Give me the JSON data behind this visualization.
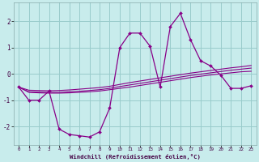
{
  "x": [
    0,
    1,
    2,
    3,
    4,
    5,
    6,
    7,
    8,
    9,
    10,
    11,
    12,
    13,
    14,
    15,
    16,
    17,
    18,
    19,
    20,
    21,
    22,
    23
  ],
  "y_main": [
    -0.5,
    -1.0,
    -1.0,
    -0.65,
    -2.1,
    -2.3,
    -2.35,
    -2.4,
    -2.2,
    -1.3,
    1.0,
    1.55,
    1.55,
    1.05,
    -0.5,
    1.8,
    2.3,
    1.3,
    0.5,
    0.3,
    -0.05,
    -0.55,
    -0.55,
    -0.45
  ],
  "y_trend1": [
    -0.5,
    -0.7,
    -0.72,
    -0.73,
    -0.73,
    -0.72,
    -0.7,
    -0.68,
    -0.65,
    -0.6,
    -0.55,
    -0.5,
    -0.44,
    -0.38,
    -0.32,
    -0.26,
    -0.2,
    -0.14,
    -0.09,
    -0.04,
    0.0,
    0.04,
    0.08,
    0.1
  ],
  "y_trend2": [
    -0.5,
    -0.68,
    -0.69,
    -0.7,
    -0.7,
    -0.68,
    -0.66,
    -0.63,
    -0.6,
    -0.55,
    -0.48,
    -0.42,
    -0.36,
    -0.3,
    -0.24,
    -0.18,
    -0.12,
    -0.06,
    -0.01,
    0.04,
    0.09,
    0.14,
    0.18,
    0.22
  ],
  "y_trend3": [
    -0.5,
    -0.62,
    -0.63,
    -0.64,
    -0.63,
    -0.61,
    -0.58,
    -0.55,
    -0.52,
    -0.47,
    -0.4,
    -0.33,
    -0.27,
    -0.21,
    -0.15,
    -0.09,
    -0.03,
    0.03,
    0.08,
    0.13,
    0.18,
    0.23,
    0.27,
    0.32
  ],
  "line_color": "#880088",
  "bg_color": "#c8ecec",
  "grid_color": "#99cccc",
  "xlabel": "Windchill (Refroidissement éolien,°C)",
  "xlim": [
    -0.5,
    23.5
  ],
  "ylim": [
    -2.7,
    2.7
  ],
  "yticks": [
    -2,
    -1,
    0,
    1,
    2
  ],
  "xticks": [
    0,
    1,
    2,
    3,
    4,
    5,
    6,
    7,
    8,
    9,
    10,
    11,
    12,
    13,
    14,
    15,
    16,
    17,
    18,
    19,
    20,
    21,
    22,
    23
  ]
}
